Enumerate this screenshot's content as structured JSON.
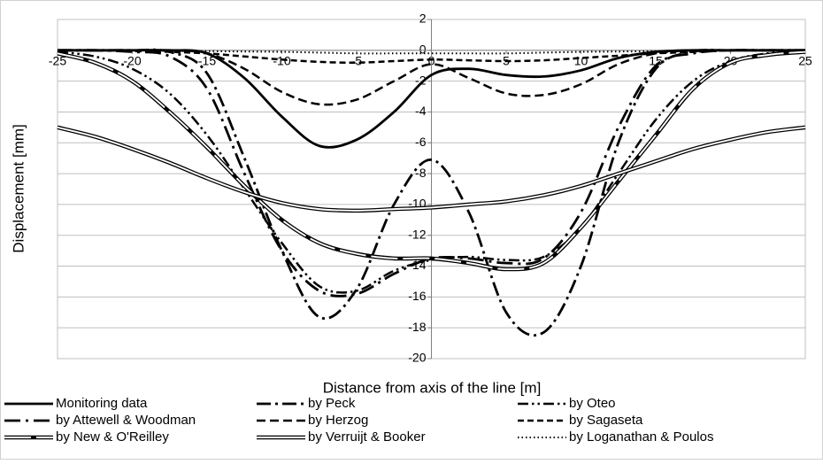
{
  "chart_data": {
    "type": "line",
    "x_label": "Distance from axis of the line [m]",
    "y_label": "Displacement [mm]",
    "x": [
      -25,
      -22.5,
      -20,
      -17.5,
      -15,
      -12.5,
      -10,
      -7.5,
      -5,
      -2.5,
      0,
      2.5,
      5,
      7.5,
      10,
      12.5,
      15,
      17.5,
      20,
      22.5,
      25
    ],
    "xlim": [
      -25,
      25
    ],
    "xticks": [
      -25,
      -20,
      -15,
      -10,
      -5,
      0,
      5,
      10,
      15,
      20,
      25
    ],
    "ylim": [
      -20,
      2
    ],
    "yticks": [
      -20,
      -18,
      -16,
      -14,
      -12,
      -10,
      -8,
      -6,
      -4,
      -2,
      0,
      2
    ],
    "grid": true,
    "legend": "bottom",
    "series": [
      {
        "name": "Monitoring data",
        "color": "#000000",
        "values": [
          0,
          0,
          0,
          0,
          -0.2,
          -1.8,
          -4.3,
          -6.2,
          -5.8,
          -4,
          -1.6,
          -1.2,
          -1.6,
          -1.7,
          -1.3,
          -0.5,
          -0.1,
          0,
          0,
          0,
          0
        ]
      },
      {
        "name": "by Peck",
        "color": "#000000",
        "values": [
          0,
          0,
          0,
          -0.1,
          -1.5,
          -7,
          -13,
          -17.3,
          -15.5,
          -10,
          -7.1,
          -10.5,
          -17,
          -18.3,
          -14,
          -6,
          -1.2,
          -0.1,
          0,
          0,
          0
        ]
      },
      {
        "name": "by Oteo",
        "color": "#000000",
        "values": [
          -0.1,
          -0.4,
          -1.2,
          -2.8,
          -5.5,
          -9,
          -12.5,
          -15.3,
          -15.6,
          -14.3,
          -13.6,
          -13.4,
          -13.6,
          -13.4,
          -11.5,
          -8,
          -4.5,
          -2,
          -0.7,
          -0.2,
          -0.1
        ]
      },
      {
        "name": "by Attewell & Woodman",
        "color": "#000000",
        "values": [
          0,
          0,
          -0.1,
          -0.4,
          -2.5,
          -8,
          -13,
          -15.6,
          -15.8,
          -14.5,
          -13.5,
          -13.5,
          -13.8,
          -13.5,
          -10.5,
          -5,
          -1,
          -0.2,
          0,
          0,
          0
        ]
      },
      {
        "name": "by Herzog",
        "color": "#000000",
        "values": [
          0,
          0,
          0,
          0,
          -0.2,
          -1.2,
          -2.7,
          -3.5,
          -3.2,
          -2,
          -0.9,
          -1.8,
          -2.8,
          -2.9,
          -2.2,
          -0.9,
          -0.2,
          0,
          0,
          0,
          0
        ]
      },
      {
        "name": "by Sagaseta",
        "color": "#000000",
        "values": [
          0,
          0,
          -0.05,
          -0.1,
          -0.2,
          -0.4,
          -0.6,
          -0.75,
          -0.8,
          -0.7,
          -0.6,
          -0.65,
          -0.7,
          -0.65,
          -0.5,
          -0.35,
          -0.2,
          -0.1,
          0,
          0,
          0
        ]
      },
      {
        "name": "by New & O'Reilley",
        "color": "#000000",
        "values": [
          -0.2,
          -0.8,
          -2,
          -4,
          -6.3,
          -8.8,
          -11,
          -12.5,
          -13.2,
          -13.5,
          -13.5,
          -13.8,
          -14.2,
          -13.8,
          -11.5,
          -8.5,
          -5.5,
          -2.5,
          -0.8,
          -0.3,
          -0.1
        ]
      },
      {
        "name": "by Verruijt & Booker",
        "color": "#000000",
        "values": [
          -5,
          -5.6,
          -6.4,
          -7.3,
          -8.3,
          -9.2,
          -9.9,
          -10.3,
          -10.4,
          -10.3,
          -10.2,
          -10,
          -9.8,
          -9.4,
          -8.8,
          -8,
          -7.2,
          -6.4,
          -5.8,
          -5.3,
          -5
        ]
      },
      {
        "name": "by Loganathan & Poulos",
        "color": "#000000",
        "values": [
          0,
          0,
          0,
          0,
          -0.05,
          -0.08,
          -0.1,
          -0.15,
          -0.2,
          -0.2,
          -0.2,
          -0.2,
          -0.2,
          -0.15,
          -0.1,
          -0.08,
          -0.05,
          0,
          0,
          0,
          0
        ]
      }
    ]
  }
}
